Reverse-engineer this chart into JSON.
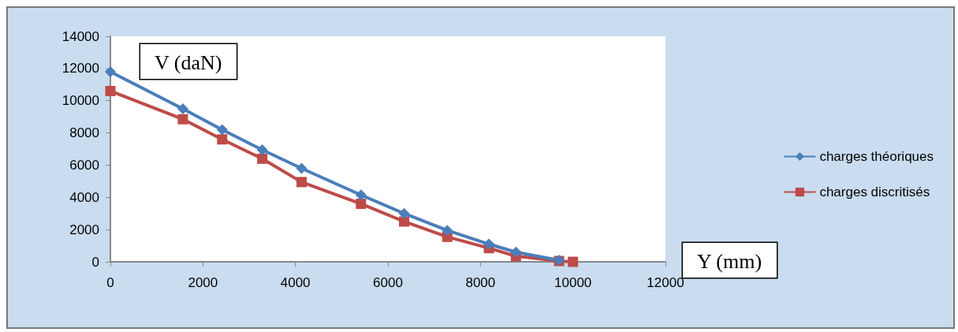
{
  "chart_data": {
    "type": "line",
    "xlabel": "Y (mm)",
    "ylabel": "V (daN)",
    "xlim": [
      0,
      12000
    ],
    "xticks": [
      0,
      2000,
      4000,
      6000,
      8000,
      10000,
      12000
    ],
    "ylim": [
      0,
      14000
    ],
    "yticks": [
      0,
      2000,
      4000,
      6000,
      8000,
      10000,
      12000,
      14000
    ],
    "grid": false,
    "legend": "right",
    "series": [
      {
        "name": "charges théoriques",
        "color": "#4a7ebb",
        "marker": "diamond",
        "x": [
          0,
          1567,
          2417,
          3283,
          4133,
          5417,
          6350,
          7283,
          8183,
          8767,
          9700
        ],
        "values": [
          11800,
          9500,
          8200,
          6950,
          5800,
          4150,
          3000,
          1950,
          1100,
          600,
          100
        ]
      },
      {
        "name": "charges discritisés",
        "color": "#be4b48",
        "marker": "square",
        "x": [
          0,
          1567,
          2417,
          3283,
          4133,
          5417,
          6350,
          7283,
          8183,
          8767,
          9700,
          10000
        ],
        "values": [
          10600,
          8850,
          7600,
          6400,
          4950,
          3600,
          2500,
          1550,
          850,
          350,
          50,
          0
        ]
      }
    ]
  }
}
